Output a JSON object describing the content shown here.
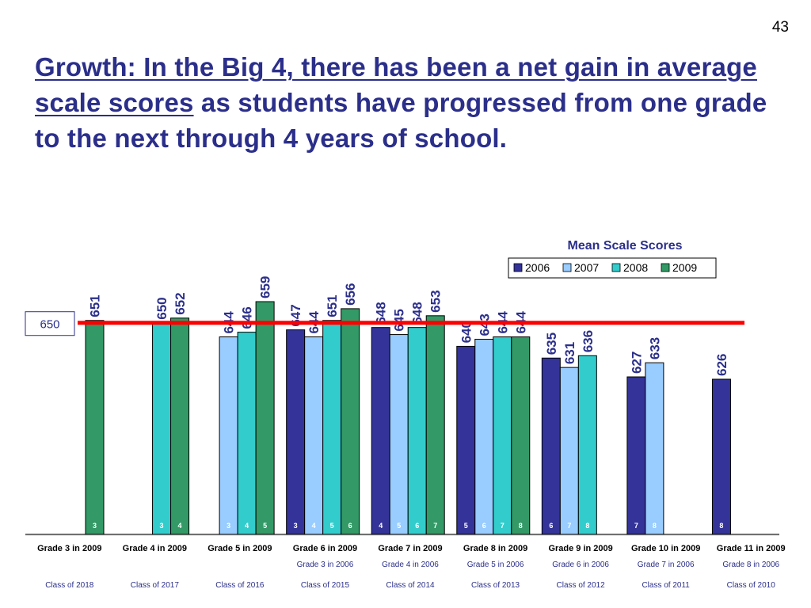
{
  "slide": {
    "page_number": "43",
    "title_underlined": "Growth: In the Big 4, there has been a net gain in average scale scores",
    "title_rest": " as students have progressed from one grade to the next through 4 years of school."
  },
  "colors": {
    "2006": "#333399",
    "2007": "#99ccff",
    "2008": "#33cccc",
    "2009": "#339966",
    "reference_line": "#ff0000",
    "title": "#2b2f8a"
  },
  "chart_data": {
    "type": "bar",
    "title": "Mean Scale Scores",
    "legend": [
      "2006",
      "2007",
      "2008",
      "2009"
    ],
    "legend_position": "top-right",
    "reference_line": {
      "value": 650,
      "label": "650"
    },
    "categories": [
      {
        "label": "Grade 3 in 2009",
        "sub1": "",
        "sub2": "Class of 2018",
        "bars": [
          {
            "series": "2009",
            "value": 651,
            "grade": "3"
          }
        ]
      },
      {
        "label": "Grade 4 in 2009",
        "sub1": "",
        "sub2": "Class of 2017",
        "bars": [
          {
            "series": "2008",
            "value": 650,
            "grade": "3"
          },
          {
            "series": "2009",
            "value": 652,
            "grade": "4"
          }
        ]
      },
      {
        "label": "Grade 5 in 2009",
        "sub1": "",
        "sub2": "Class of 2016",
        "bars": [
          {
            "series": "2007",
            "value": 644,
            "grade": "3"
          },
          {
            "series": "2008",
            "value": 646,
            "grade": "4"
          },
          {
            "series": "2009",
            "value": 659,
            "grade": "5"
          }
        ]
      },
      {
        "label": "Grade 6 in 2009",
        "sub1": "Grade 3 in 2006",
        "sub2": "Class of 2015",
        "bars": [
          {
            "series": "2006",
            "value": 647,
            "grade": "3"
          },
          {
            "series": "2007",
            "value": 644,
            "grade": "4"
          },
          {
            "series": "2008",
            "value": 651,
            "grade": "5"
          },
          {
            "series": "2009",
            "value": 656,
            "grade": "6"
          }
        ]
      },
      {
        "label": "Grade 7 in 2009",
        "sub1": "Grade 4 in 2006",
        "sub2": "Class of 2014",
        "bars": [
          {
            "series": "2006",
            "value": 648,
            "grade": "4"
          },
          {
            "series": "2007",
            "value": 645,
            "grade": "5"
          },
          {
            "series": "2008",
            "value": 648,
            "grade": "6"
          },
          {
            "series": "2009",
            "value": 653,
            "grade": "7"
          }
        ]
      },
      {
        "label": "Grade 8 in 2009",
        "sub1": "Grade 5 in 2006",
        "sub2": "Class of 2013",
        "bars": [
          {
            "series": "2006",
            "value": 640,
            "grade": "5"
          },
          {
            "series": "2007",
            "value": 643,
            "grade": "6"
          },
          {
            "series": "2008",
            "value": 644,
            "grade": "7"
          },
          {
            "series": "2009",
            "value": 644,
            "grade": "8"
          }
        ]
      },
      {
        "label": "Grade 9 in 2009",
        "sub1": "Grade 6 in 2006",
        "sub2": "Class of 2012",
        "bars": [
          {
            "series": "2006",
            "value": 635,
            "grade": "6"
          },
          {
            "series": "2007",
            "value": 631,
            "grade": "7"
          },
          {
            "series": "2008",
            "value": 636,
            "grade": "8"
          }
        ]
      },
      {
        "label": "Grade 10 in 2009",
        "sub1": "Grade 7 in 2006",
        "sub2": "Class of 2011",
        "bars": [
          {
            "series": "2006",
            "value": 627,
            "grade": "7"
          },
          {
            "series": "2007",
            "value": 633,
            "grade": "8"
          }
        ]
      },
      {
        "label": "Grade 11 in 2009",
        "sub1": "Grade 8 in 2006",
        "sub2": "Class of 2010",
        "bars": [
          {
            "series": "2006",
            "value": 626,
            "grade": "8"
          }
        ]
      }
    ]
  }
}
